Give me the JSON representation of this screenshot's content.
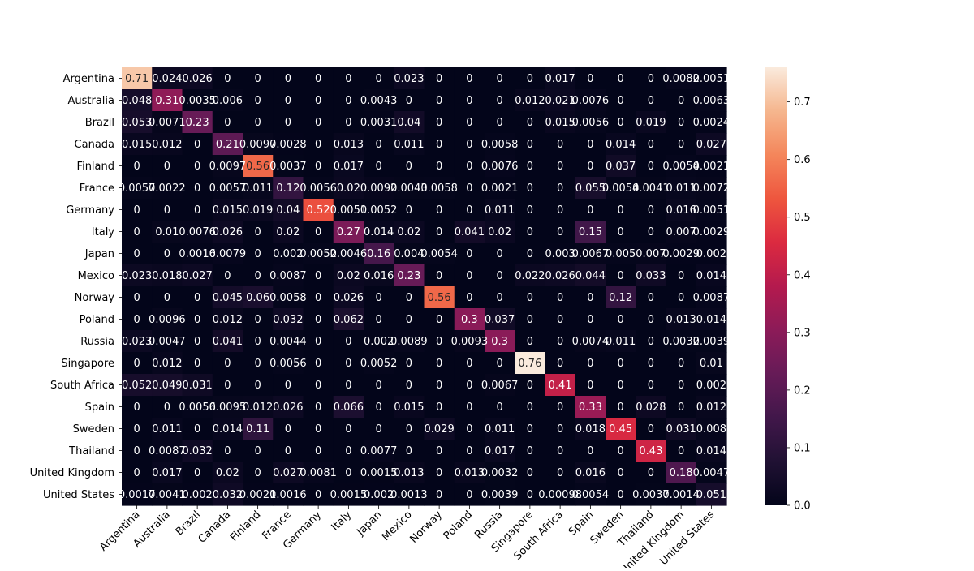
{
  "chart_data": {
    "type": "heatmap",
    "title": "",
    "xlabel": "",
    "ylabel": "",
    "categories_x": [
      "Argentina",
      "Australia",
      "Brazil",
      "Canada",
      "Finland",
      "France",
      "Germany",
      "Italy",
      "Japan",
      "Mexico",
      "Norway",
      "Poland",
      "Russia",
      "Singapore",
      "South Africa",
      "Spain",
      "Sweden",
      "Thailand",
      "United Kingdom",
      "United States"
    ],
    "categories_y": [
      "Argentina",
      "Australia",
      "Brazil",
      "Canada",
      "Finland",
      "France",
      "Germany",
      "Italy",
      "Japan",
      "Mexico",
      "Norway",
      "Poland",
      "Russia",
      "Singapore",
      "South Africa",
      "Spain",
      "Sweden",
      "Thailand",
      "United Kingdom",
      "United States"
    ],
    "values": [
      [
        0.71,
        0.024,
        0.026,
        0,
        0,
        0,
        0,
        0,
        0,
        0.023,
        0,
        0,
        0,
        0,
        0.017,
        0,
        0,
        0,
        0.0082,
        0.0051
      ],
      [
        0.048,
        0.31,
        0.0035,
        0.006,
        0,
        0,
        0,
        0,
        0.0043,
        0,
        0,
        0,
        0,
        0.012,
        0.021,
        0.0076,
        0,
        0,
        0,
        0.0063
      ],
      [
        0.053,
        0.0071,
        0.23,
        0,
        0,
        0,
        0,
        0,
        0.0031,
        0.04,
        0,
        0,
        0,
        0,
        0.015,
        0.0056,
        0,
        0.019,
        0,
        0.0024
      ],
      [
        0.015,
        0.012,
        0,
        0.21,
        0.0097,
        0.0028,
        0,
        0.013,
        0,
        0.011,
        0,
        0,
        0.0058,
        0,
        0,
        0,
        0.014,
        0,
        0,
        0.027
      ],
      [
        0,
        0,
        0,
        0.0097,
        0.56,
        0.0037,
        0,
        0.017,
        0,
        0,
        0,
        0,
        0.0076,
        0,
        0,
        0,
        0.037,
        0,
        0.0054,
        0.0021
      ],
      [
        0.0057,
        0.0022,
        0,
        0.0057,
        0.011,
        0.12,
        0.0056,
        0.02,
        0.0092,
        0.0043,
        0.0058,
        0,
        0.0021,
        0,
        0,
        0.055,
        0.0054,
        0.0041,
        0.011,
        0.0072
      ],
      [
        0,
        0,
        0,
        0.015,
        0.019,
        0.04,
        0.52,
        0.0051,
        0.0052,
        0,
        0,
        0,
        0.011,
        0,
        0,
        0,
        0,
        0,
        0.016,
        0.0051
      ],
      [
        0,
        0.01,
        0.0076,
        0.026,
        0,
        0.02,
        0,
        0.27,
        0.014,
        0.02,
        0,
        0.041,
        0.02,
        0,
        0,
        0.15,
        0,
        0,
        0.007,
        0.0029
      ],
      [
        0,
        0,
        0.0016,
        0.0079,
        0,
        0.002,
        0.0052,
        0.0046,
        0.16,
        0.004,
        0.0054,
        0,
        0,
        0,
        0.003,
        0.0067,
        0.005,
        0.007,
        0.0029,
        0.002
      ],
      [
        0.023,
        0.018,
        0.027,
        0,
        0,
        0.0087,
        0,
        0.02,
        0.016,
        0.23,
        0,
        0,
        0,
        0.022,
        0.026,
        0.044,
        0,
        0.033,
        0,
        0.014
      ],
      [
        0,
        0,
        0,
        0.045,
        0.06,
        0.0058,
        0,
        0.026,
        0,
        0,
        0.56,
        0,
        0,
        0,
        0,
        0,
        0.12,
        0,
        0,
        0.0087
      ],
      [
        0,
        0.0096,
        0,
        0.012,
        0,
        0.032,
        0,
        0.062,
        0,
        0,
        0,
        0.3,
        0.037,
        0,
        0,
        0,
        0,
        0,
        0.013,
        0.014
      ],
      [
        0.023,
        0.0047,
        0,
        0.041,
        0,
        0.0044,
        0,
        0,
        0.002,
        0.0089,
        0,
        0.0093,
        0.3,
        0,
        0,
        0.0074,
        0.011,
        0,
        0.0032,
        0.0039
      ],
      [
        0,
        0.012,
        0,
        0,
        0,
        0.0056,
        0,
        0,
        0.0052,
        0,
        0,
        0,
        0,
        0.76,
        0,
        0,
        0,
        0,
        0,
        0.01
      ],
      [
        0.052,
        0.049,
        0.031,
        0,
        0,
        0,
        0,
        0,
        0,
        0,
        0,
        0,
        0.0067,
        0,
        0.41,
        0,
        0,
        0,
        0,
        0.002
      ],
      [
        0,
        0,
        0.0056,
        0.0095,
        0.012,
        0.026,
        0,
        0.066,
        0,
        0.015,
        0,
        0,
        0,
        0,
        0,
        0.33,
        0,
        0.028,
        0,
        0.012
      ],
      [
        0,
        0.011,
        0,
        0.014,
        0.11,
        0,
        0,
        0,
        0,
        0,
        0.029,
        0,
        0.011,
        0,
        0,
        0.018,
        0.45,
        0,
        0.031,
        0.008
      ],
      [
        0,
        0.0087,
        0.032,
        0,
        0,
        0,
        0,
        0,
        0.0077,
        0,
        0,
        0,
        0.017,
        0,
        0,
        0,
        0,
        0.43,
        0,
        0.014
      ],
      [
        0,
        0.017,
        0,
        0.02,
        0,
        0.027,
        0.0081,
        0,
        0.0015,
        0.013,
        0,
        0.013,
        0.0032,
        0,
        0,
        0.016,
        0,
        0,
        0.18,
        0.0047
      ],
      [
        0.0017,
        0.0041,
        0.002,
        0.032,
        0.0021,
        0.0016,
        0,
        0.0015,
        0.002,
        0.0013,
        0,
        0,
        0.0039,
        0,
        0.00098,
        0.0054,
        0,
        0.0037,
        0.0014,
        0.051
      ]
    ],
    "labels": [
      [
        "0.71",
        "0.024",
        "0.026",
        "0",
        "0",
        "0",
        "0",
        "0",
        "0",
        "0.023",
        "0",
        "0",
        "0",
        "0",
        "0.017",
        "0",
        "0",
        "0",
        "0.0082",
        "0.0051"
      ],
      [
        "0.048",
        "0.31",
        "0.0035",
        "0.006",
        "0",
        "0",
        "0",
        "0",
        "0.0043",
        "0",
        "0",
        "0",
        "0",
        "0.012",
        "0.021",
        "0.0076",
        "0",
        "0",
        "0",
        "0.0063"
      ],
      [
        "0.053",
        "0.0071",
        "0.23",
        "0",
        "0",
        "0",
        "0",
        "0",
        "0.0031",
        "0.04",
        "0",
        "0",
        "0",
        "0",
        "0.015",
        "0.0056",
        "0",
        "0.019",
        "0",
        "0.0024"
      ],
      [
        "0.015",
        "0.012",
        "0",
        "0.21",
        "0.0097",
        "0.0028",
        "0",
        "0.013",
        "0",
        "0.011",
        "0",
        "0",
        "0.0058",
        "0",
        "0",
        "0",
        "0.014",
        "0",
        "0",
        "0.027"
      ],
      [
        "0",
        "0",
        "0",
        "0.0097",
        "0.56",
        "0.0037",
        "0",
        "0.017",
        "0",
        "0",
        "0",
        "0",
        "0.0076",
        "0",
        "0",
        "0",
        "0.037",
        "0",
        "0.0054",
        "0.0021"
      ],
      [
        "0.0057",
        "0.0022",
        "0",
        "0.0057",
        "0.011",
        "0.12",
        "0.0056",
        "0.02",
        "0.0092",
        "0.0043",
        "0.0058",
        "0",
        "0.0021",
        "0",
        "0",
        "0.055",
        "0.0054",
        "0.0041",
        "0.011",
        "0.0072"
      ],
      [
        "0",
        "0",
        "0",
        "0.015",
        "0.019",
        "0.04",
        "0.52",
        "0.0051",
        "0.0052",
        "0",
        "0",
        "0",
        "0.011",
        "0",
        "0",
        "0",
        "0",
        "0",
        "0.016",
        "0.0051"
      ],
      [
        "0",
        "0.01",
        "0.0076",
        "0.026",
        "0",
        "0.02",
        "0",
        "0.27",
        "0.014",
        "0.02",
        "0",
        "0.041",
        "0.02",
        "0",
        "0",
        "0.15",
        "0",
        "0",
        "0.007",
        "0.0029"
      ],
      [
        "0",
        "0",
        "0.0016",
        "0.0079",
        "0",
        "0.002",
        "0.0052",
        "0.0046",
        "0.16",
        "0.004",
        "0.0054",
        "0",
        "0",
        "0",
        "0.003",
        "0.0067",
        "0.005",
        "0.007",
        "0.0029",
        "0.002"
      ],
      [
        "0.023",
        "0.018",
        "0.027",
        "0",
        "0",
        "0.0087",
        "0",
        "0.02",
        "0.016",
        "0.23",
        "0",
        "0",
        "0",
        "0.022",
        "0.026",
        "0.044",
        "0",
        "0.033",
        "0",
        "0.014"
      ],
      [
        "0",
        "0",
        "0",
        "0.045",
        "0.06",
        "0.0058",
        "0",
        "0.026",
        "0",
        "0",
        "0.56",
        "0",
        "0",
        "0",
        "0",
        "0",
        "0.12",
        "0",
        "0",
        "0.0087"
      ],
      [
        "0",
        "0.0096",
        "0",
        "0.012",
        "0",
        "0.032",
        "0",
        "0.062",
        "0",
        "0",
        "0",
        "0.3",
        "0.037",
        "0",
        "0",
        "0",
        "0",
        "0",
        "0.013",
        "0.014"
      ],
      [
        "0.023",
        "0.0047",
        "0",
        "0.041",
        "0",
        "0.0044",
        "0",
        "0",
        "0.002",
        "0.0089",
        "0",
        "0.0093",
        "0.3",
        "0",
        "0",
        "0.0074",
        "0.011",
        "0",
        "0.0032",
        "0.0039"
      ],
      [
        "0",
        "0.012",
        "0",
        "0",
        "0",
        "0.0056",
        "0",
        "0",
        "0.0052",
        "0",
        "0",
        "0",
        "0",
        "0.76",
        "0",
        "0",
        "0",
        "0",
        "0",
        "0.01"
      ],
      [
        "0.052",
        "0.049",
        "0.031",
        "0",
        "0",
        "0",
        "0",
        "0",
        "0",
        "0",
        "0",
        "0",
        "0.0067",
        "0",
        "0.41",
        "0",
        "0",
        "0",
        "0",
        "0.002"
      ],
      [
        "0",
        "0",
        "0.0056",
        "0.0095",
        "0.012",
        "0.026",
        "0",
        "0.066",
        "0",
        "0.015",
        "0",
        "0",
        "0",
        "0",
        "0",
        "0.33",
        "0",
        "0.028",
        "0",
        "0.012"
      ],
      [
        "0",
        "0.011",
        "0",
        "0.014",
        "0.11",
        "0",
        "0",
        "0",
        "0",
        "0",
        "0.029",
        "0",
        "0.011",
        "0",
        "0",
        "0.018",
        "0.45",
        "0",
        "0.031",
        "0.008"
      ],
      [
        "0",
        "0.0087",
        "0.032",
        "0",
        "0",
        "0",
        "0",
        "0",
        "0.0077",
        "0",
        "0",
        "0",
        "0.017",
        "0",
        "0",
        "0",
        "0",
        "0.43",
        "0",
        "0.014"
      ],
      [
        "0",
        "0.017",
        "0",
        "0.02",
        "0",
        "0.027",
        "0.0081",
        "0",
        "0.0015",
        "0.013",
        "0",
        "0.013",
        "0.0032",
        "0",
        "0",
        "0.016",
        "0",
        "0",
        "0.18",
        "0.0047"
      ],
      [
        "0.0017",
        "0.0041",
        "0.002",
        "0.032",
        "0.0021",
        "0.0016",
        "0",
        "0.0015",
        "0.002",
        "0.0013",
        "0",
        "0",
        "0.0039",
        "0",
        "0.00098",
        "0.0054",
        "0",
        "0.0037",
        "0.0014",
        "0.051"
      ]
    ],
    "colorbar": {
      "min": 0,
      "max": 0.76,
      "ticks": [
        0.0,
        0.1,
        0.2,
        0.3,
        0.4,
        0.5,
        0.6,
        0.7
      ],
      "tick_labels": [
        "0.0",
        "0.1",
        "0.2",
        "0.3",
        "0.4",
        "0.5",
        "0.6",
        "0.7"
      ],
      "colormap": "rocket"
    }
  }
}
